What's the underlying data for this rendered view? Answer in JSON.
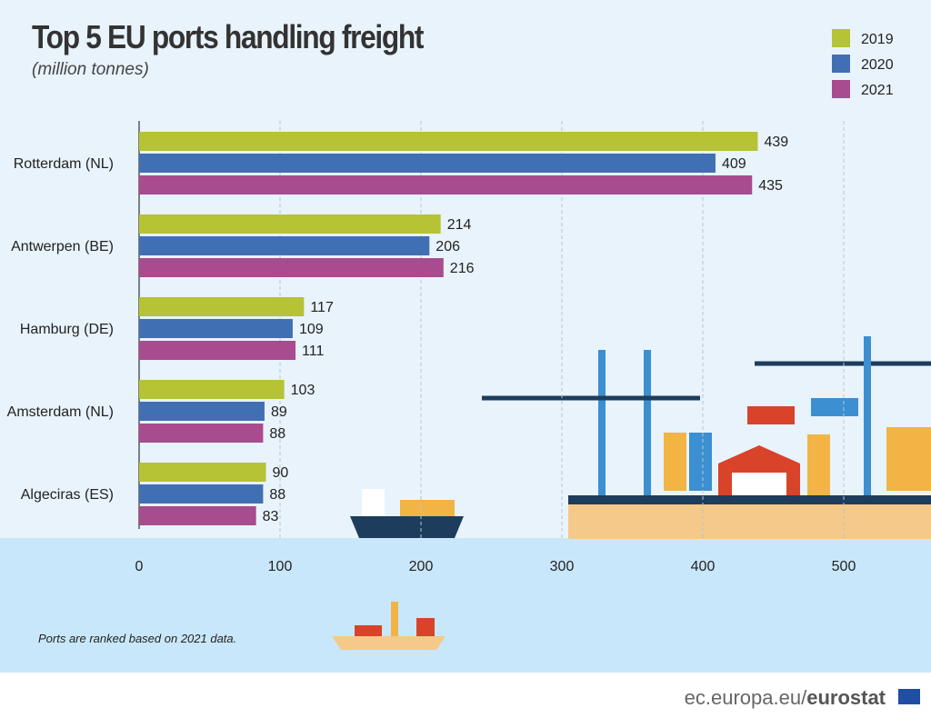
{
  "chart_data": {
    "type": "bar",
    "orientation": "horizontal",
    "title": "Top 5 EU ports handling freight",
    "subtitle": "(million tonnes)",
    "categories": [
      "Rotterdam (NL)",
      "Antwerpen (BE)",
      "Hamburg (DE)",
      "Amsterdam (NL)",
      "Algeciras (ES)"
    ],
    "series": [
      {
        "name": "2019",
        "color": "#b5c334",
        "values": [
          439,
          214,
          117,
          103,
          90
        ]
      },
      {
        "name": "2020",
        "color": "#416fb3",
        "values": [
          409,
          206,
          109,
          89,
          88
        ]
      },
      {
        "name": "2021",
        "color": "#a84b8f",
        "values": [
          435,
          216,
          111,
          88,
          83
        ]
      }
    ],
    "xlim": [
      0,
      560
    ],
    "xticks": [
      0,
      100,
      200,
      300,
      400,
      500
    ],
    "grid": true,
    "legend": "top-right",
    "note": "Ports are ranked based on 2021 data."
  },
  "footer": {
    "site": "ec.europa.eu/",
    "brand": "eurostat"
  }
}
